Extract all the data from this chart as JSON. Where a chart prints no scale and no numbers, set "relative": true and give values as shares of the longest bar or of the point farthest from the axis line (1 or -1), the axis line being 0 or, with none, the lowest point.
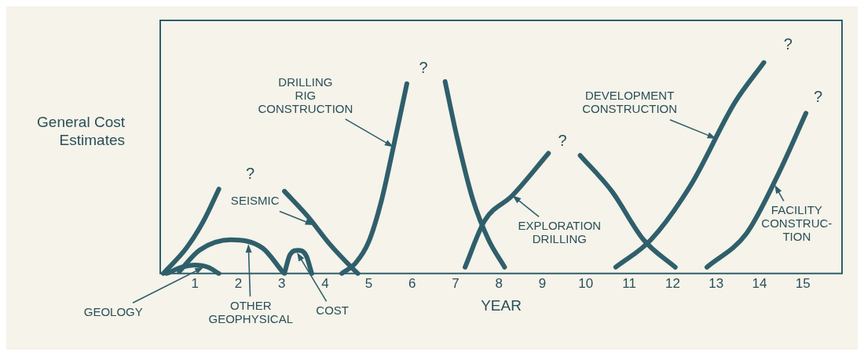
{
  "chart_data": {
    "type": "line",
    "relative": true,
    "xlabel": "YEAR",
    "ylabel": "General Cost Estimates",
    "xlim": [
      0.2,
      15.9
    ],
    "xticks": [
      1,
      2,
      3,
      4,
      5,
      6,
      7,
      8,
      9,
      10,
      11,
      12,
      13,
      14,
      15
    ],
    "series": [
      {
        "color": "#2f5f6b",
        "x": [
          0.35,
          0.7,
          1.0,
          1.3,
          1.55
        ],
        "values": [
          0,
          0.03,
          0.04,
          0.03,
          0
        ]
      },
      {
        "color": "#2f5f6b",
        "x": [
          0.27,
          0.8,
          1.2,
          1.55,
          2.3,
          3.06,
          3.6,
          4.1,
          4.6,
          4.75
        ],
        "values": [
          0,
          0.12,
          0.25,
          0.4,
          null,
          0.39,
          0.27,
          0.14,
          0.03,
          0
        ]
      },
      {
        "color": "#2f5f6b",
        "x": [
          0.64,
          1.1,
          1.83,
          2.56,
          3.01
        ],
        "values": [
          0.01,
          0.11,
          0.16,
          0.12,
          0.01
        ]
      },
      {
        "color": "#2f5f6b",
        "x": [
          3.06,
          3.19,
          3.37,
          3.56,
          3.69
        ],
        "values": [
          0,
          0.09,
          0.11,
          0.085,
          0
        ]
      },
      {
        "color": "#2f5f6b",
        "x": [
          4.38,
          4.7,
          5.0,
          5.3,
          5.57,
          5.88,
          6.3,
          6.76,
          7.03,
          7.4,
          7.76,
          8.13
        ],
        "values": [
          0,
          0.05,
          0.15,
          0.35,
          0.6,
          0.9,
          null,
          0.91,
          0.65,
          0.35,
          0.16,
          0.03
        ]
      },
      {
        "color": "#2f5f6b",
        "x": [
          7.22,
          7.67,
          8.31,
          9.14,
          9.5,
          9.87,
          10.6,
          11.33,
          12.06
        ],
        "values": [
          0.03,
          0.25,
          0.37,
          0.57,
          null,
          0.56,
          0.39,
          0.16,
          0.03
        ]
      },
      {
        "color": "#2f5f6b",
        "x": [
          10.69,
          11.5,
          12.42,
          13.43,
          14.1
        ],
        "values": [
          0.03,
          0.16,
          0.42,
          0.81,
          1.0
        ]
      },
      {
        "color": "#2f5f6b",
        "x": [
          12.79,
          13.7,
          14.43,
          15.07
        ],
        "values": [
          0.03,
          0.19,
          0.47,
          0.76
        ]
      }
    ],
    "annotations": [
      {
        "text": "GEOLOGY",
        "x": 1.2,
        "y": 0.03
      },
      {
        "text": "OTHER\nGEOPHYSICAL",
        "x": 2.23,
        "y": 0.14
      },
      {
        "text": "COST",
        "x": 3.35,
        "y": 0.1
      },
      {
        "text": "SEISMIC",
        "x": 3.74,
        "y": 0.23
      },
      {
        "text": "DRILLING\nRIG\nCONSTRUCTION",
        "x": 5.57,
        "y": 0.6
      },
      {
        "text": "EXPLORATION\nDRILLING",
        "x": 8.31,
        "y": 0.37
      },
      {
        "text": "DEVELOPMENT\nCONSTRUCTION",
        "x": 13.0,
        "y": 0.64
      },
      {
        "text": "FACILITY\nCONSTRUC-\nTION",
        "x": 14.35,
        "y": 0.42
      },
      "?",
      "?",
      "?",
      "?",
      "?"
    ]
  }
}
